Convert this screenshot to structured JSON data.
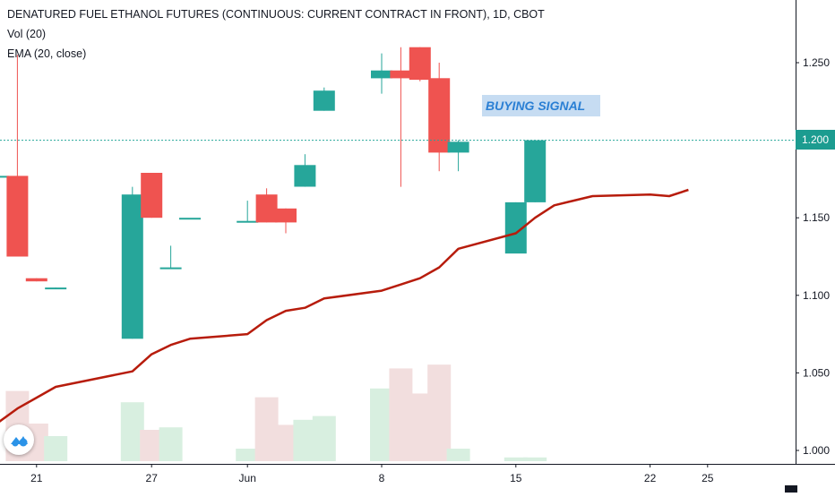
{
  "legend": {
    "title": "DENATURED FUEL ETHANOL FUTURES (CONTINUOUS: CURRENT CONTRACT IN FRONT), 1D, CBOT",
    "volume": "Vol (20)",
    "ema": "EMA (20, close)"
  },
  "annotation": {
    "text": "BUYING SIGNAL"
  },
  "price_line": {
    "label": "1.200",
    "value": 1.2
  },
  "colors": {
    "up": "#26a69a",
    "down": "#ef5350",
    "ema": "#b71c0c",
    "volume_up": "#d8efe0",
    "volume_down": "#f2dede",
    "price_line": "#26a69a",
    "annotation_bg": "#c6dcf2",
    "annotation_text": "#2a7fd4"
  },
  "icons": {
    "logo": "tradingview-logo-icon"
  },
  "chart_data": {
    "type": "candlestick",
    "title": "DENATURED FUEL ETHANOL FUTURES (CONTINUOUS: CURRENT CONTRACT IN FRONT), 1D, CBOT",
    "xlabel": "",
    "ylabel": "",
    "ylim": [
      0.99,
      1.28
    ],
    "grid": false,
    "y_ticks": [
      "1.250",
      "1.200",
      "1.150",
      "1.100",
      "1.050",
      "1.000"
    ],
    "x_ticks": [
      {
        "label": "21",
        "date": "2020-05-21"
      },
      {
        "label": "27",
        "date": "2020-05-27"
      },
      {
        "label": "Jun",
        "date": "2020-06-01"
      },
      {
        "label": "8",
        "date": "2020-06-08"
      },
      {
        "label": "15",
        "date": "2020-06-15"
      },
      {
        "label": "22",
        "date": "2020-06-22"
      },
      {
        "label": "25",
        "date": "2020-06-25"
      }
    ],
    "candles": [
      {
        "date": "2020-05-19",
        "open": 1.177,
        "high": 1.177,
        "low": 1.177,
        "close": 1.177
      },
      {
        "date": "2020-05-20",
        "open": 1.177,
        "high": 1.255,
        "low": 1.125,
        "close": 1.125
      },
      {
        "date": "2020-05-21",
        "open": 1.111,
        "high": 1.111,
        "low": 1.109,
        "close": 1.109
      },
      {
        "date": "2020-05-22",
        "open": 1.104,
        "high": 1.105,
        "low": 1.104,
        "close": 1.105
      },
      {
        "date": "2020-05-26",
        "open": 1.072,
        "high": 1.17,
        "low": 1.072,
        "close": 1.165
      },
      {
        "date": "2020-05-27",
        "open": 1.179,
        "high": 1.179,
        "low": 1.15,
        "close": 1.15
      },
      {
        "date": "2020-05-28",
        "open": 1.118,
        "high": 1.132,
        "low": 1.117,
        "close": 1.118
      },
      {
        "date": "2020-05-29",
        "open": 1.149,
        "high": 1.149,
        "low": 1.149,
        "close": 1.15
      },
      {
        "date": "2020-06-01",
        "open": 1.147,
        "high": 1.161,
        "low": 1.147,
        "close": 1.148
      },
      {
        "date": "2020-06-02",
        "open": 1.165,
        "high": 1.169,
        "low": 1.147,
        "close": 1.147
      },
      {
        "date": "2020-06-03",
        "open": 1.156,
        "high": 1.156,
        "low": 1.14,
        "close": 1.147
      },
      {
        "date": "2020-06-04",
        "open": 1.17,
        "high": 1.191,
        "low": 1.17,
        "close": 1.184
      },
      {
        "date": "2020-06-05",
        "open": 1.219,
        "high": 1.234,
        "low": 1.219,
        "close": 1.232
      },
      {
        "date": "2020-06-08",
        "open": 1.24,
        "high": 1.256,
        "low": 1.23,
        "close": 1.245
      },
      {
        "date": "2020-06-09",
        "open": 1.245,
        "high": 1.26,
        "low": 1.17,
        "close": 1.24
      },
      {
        "date": "2020-06-10",
        "open": 1.26,
        "high": 1.26,
        "low": 1.238,
        "close": 1.239
      },
      {
        "date": "2020-06-11",
        "open": 1.24,
        "high": 1.25,
        "low": 1.18,
        "close": 1.192
      },
      {
        "date": "2020-06-12",
        "open": 1.192,
        "high": 1.2,
        "low": 1.18,
        "close": 1.199
      },
      {
        "date": "2020-06-15",
        "open": 1.127,
        "high": 1.16,
        "low": 1.127,
        "close": 1.16
      },
      {
        "date": "2020-06-16",
        "open": 1.16,
        "high": 1.2,
        "low": 1.16,
        "close": 1.2
      }
    ],
    "volume": [
      {
        "date": "2020-05-20",
        "relative": 0.56,
        "direction": "down"
      },
      {
        "date": "2020-05-21",
        "relative": 0.3,
        "direction": "down"
      },
      {
        "date": "2020-05-22",
        "relative": 0.2,
        "direction": "up"
      },
      {
        "date": "2020-05-26",
        "relative": 0.47,
        "direction": "up"
      },
      {
        "date": "2020-05-27",
        "relative": 0.25,
        "direction": "down"
      },
      {
        "date": "2020-05-28",
        "relative": 0.27,
        "direction": "up"
      },
      {
        "date": "2020-06-01",
        "relative": 0.1,
        "direction": "up"
      },
      {
        "date": "2020-06-02",
        "relative": 0.51,
        "direction": "down"
      },
      {
        "date": "2020-06-03",
        "relative": 0.29,
        "direction": "down"
      },
      {
        "date": "2020-06-04",
        "relative": 0.33,
        "direction": "up"
      },
      {
        "date": "2020-06-05",
        "relative": 0.36,
        "direction": "up"
      },
      {
        "date": "2020-06-08",
        "relative": 0.58,
        "direction": "up"
      },
      {
        "date": "2020-06-09",
        "relative": 0.74,
        "direction": "down"
      },
      {
        "date": "2020-06-10",
        "relative": 0.54,
        "direction": "down"
      },
      {
        "date": "2020-06-11",
        "relative": 0.77,
        "direction": "down"
      },
      {
        "date": "2020-06-12",
        "relative": 0.1,
        "direction": "up"
      },
      {
        "date": "2020-06-15",
        "relative": 0.03,
        "direction": "up"
      },
      {
        "date": "2020-06-16",
        "relative": 0.03,
        "direction": "up"
      }
    ],
    "ema": [
      {
        "date": "2020-05-19",
        "value": 1.018
      },
      {
        "date": "2020-05-20",
        "value": 1.027
      },
      {
        "date": "2020-05-21",
        "value": 1.034
      },
      {
        "date": "2020-05-22",
        "value": 1.041
      },
      {
        "date": "2020-05-26",
        "value": 1.051
      },
      {
        "date": "2020-05-27",
        "value": 1.062
      },
      {
        "date": "2020-05-28",
        "value": 1.068
      },
      {
        "date": "2020-05-29",
        "value": 1.072
      },
      {
        "date": "2020-06-01",
        "value": 1.075
      },
      {
        "date": "2020-06-02",
        "value": 1.084
      },
      {
        "date": "2020-06-03",
        "value": 1.09
      },
      {
        "date": "2020-06-04",
        "value": 1.092
      },
      {
        "date": "2020-06-05",
        "value": 1.098
      },
      {
        "date": "2020-06-08",
        "value": 1.103
      },
      {
        "date": "2020-06-09",
        "value": 1.107
      },
      {
        "date": "2020-06-10",
        "value": 1.111
      },
      {
        "date": "2020-06-11",
        "value": 1.118
      },
      {
        "date": "2020-06-12",
        "value": 1.13
      },
      {
        "date": "2020-06-15",
        "value": 1.14
      },
      {
        "date": "2020-06-16",
        "value": 1.15
      },
      {
        "date": "2020-06-17",
        "value": 1.158
      },
      {
        "date": "2020-06-18",
        "value": 1.161
      },
      {
        "date": "2020-06-19",
        "value": 1.164
      },
      {
        "date": "2020-06-22",
        "value": 1.165
      },
      {
        "date": "2020-06-23",
        "value": 1.164
      },
      {
        "date": "2020-06-24",
        "value": 1.168
      }
    ]
  }
}
